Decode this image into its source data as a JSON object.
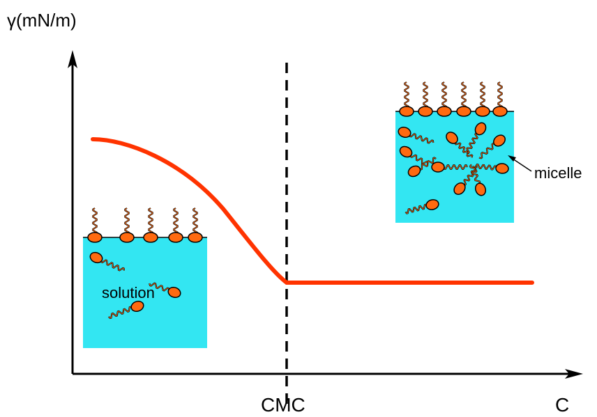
{
  "diagram": {
    "y_axis_label": "γ(mN/m)",
    "x_axis_label": "C",
    "cmc_label": "CMC",
    "left_inset_label": "solution",
    "right_inset_label": "micelle"
  },
  "colors": {
    "curve": "#ff3300",
    "water": "#33e6f2",
    "head": "#ff6a10",
    "axis": "#000000"
  },
  "chart_data": {
    "type": "line",
    "title": "",
    "xlabel": "C",
    "ylabel": "γ(mN/m)",
    "annotations": [
      "CMC",
      "solution",
      "micelle"
    ],
    "grid": false,
    "series": [
      {
        "values": "surface tension decreases with concentration until the CMC, then stays constant"
      }
    ]
  }
}
